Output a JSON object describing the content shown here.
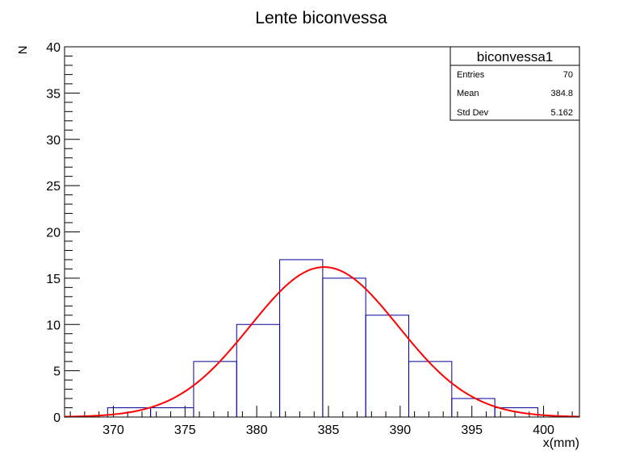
{
  "chart_data": {
    "type": "bar",
    "title": "Lente biconvessa",
    "xlabel": "x(mm)",
    "ylabel": "N",
    "xlim": [
      366.6,
      402.5
    ],
    "ylim": [
      0,
      40
    ],
    "x_ticks": [
      370,
      375,
      380,
      385,
      390,
      395,
      400
    ],
    "y_ticks": [
      0,
      5,
      10,
      15,
      20,
      25,
      30,
      35,
      40
    ],
    "bins": [
      {
        "x0": 366.6,
        "x1": 369.6,
        "value": 0
      },
      {
        "x0": 369.6,
        "x1": 372.6,
        "value": 1
      },
      {
        "x0": 372.6,
        "x1": 375.6,
        "value": 1
      },
      {
        "x0": 375.6,
        "x1": 378.6,
        "value": 6
      },
      {
        "x0": 378.6,
        "x1": 381.6,
        "value": 10
      },
      {
        "x0": 381.6,
        "x1": 384.6,
        "value": 17
      },
      {
        "x0": 384.6,
        "x1": 387.6,
        "value": 15
      },
      {
        "x0": 387.6,
        "x1": 390.6,
        "value": 11
      },
      {
        "x0": 390.6,
        "x1": 393.6,
        "value": 6
      },
      {
        "x0": 393.6,
        "x1": 396.6,
        "value": 2
      },
      {
        "x0": 396.6,
        "x1": 399.6,
        "value": 1
      },
      {
        "x0": 399.6,
        "x1": 402.5,
        "value": 0
      }
    ],
    "fit": {
      "type": "gaussian",
      "amplitude": 16.2,
      "mean": 384.7,
      "sigma": 5.16,
      "color": "#ff0000"
    },
    "histogram_color": "#000099",
    "stats_box": {
      "title": "biconvessa1",
      "rows": [
        {
          "label": "Entries",
          "value": "70"
        },
        {
          "label": "Mean",
          "value": "384.8"
        },
        {
          "label": "Std Dev",
          "value": "5.162"
        }
      ]
    },
    "legend_placement": "top-right",
    "grid": false
  }
}
